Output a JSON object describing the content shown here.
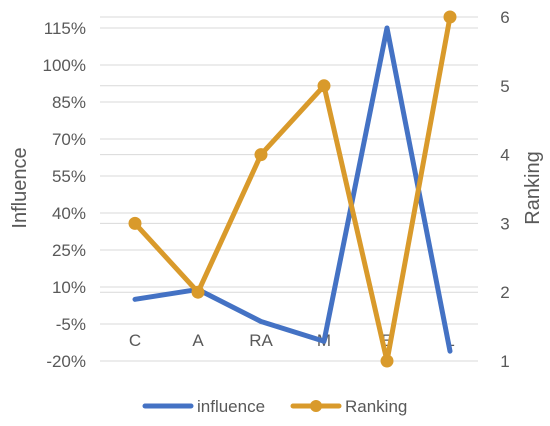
{
  "chart_data": {
    "type": "line",
    "categories": [
      "C",
      "A",
      "RA",
      "M",
      "E",
      "L"
    ],
    "series": [
      {
        "name": "influence",
        "axis": "left",
        "color": "#4472C4",
        "values": [
          0.05,
          0.09,
          -0.04,
          -0.12,
          1.15,
          -0.16
        ],
        "markers": false
      },
      {
        "name": "Ranking",
        "axis": "right",
        "color": "#D99A2B",
        "values": [
          3,
          2,
          4,
          5,
          1,
          6
        ],
        "markers": true
      }
    ],
    "y_left": {
      "label": "Influence",
      "min": -0.2,
      "max": 1.25,
      "ticks": [
        -0.2,
        -0.05,
        0.1,
        0.25,
        0.4,
        0.55,
        0.7,
        0.85,
        1.0,
        1.15
      ],
      "tick_labels": [
        "-20%",
        "-5%",
        "10%",
        "25%",
        "40%",
        "55%",
        "70%",
        "85%",
        "100%",
        "115%"
      ]
    },
    "y_right": {
      "label": "Ranking",
      "min": 1,
      "max": 6.2,
      "ticks": [
        1,
        2,
        3,
        4,
        5,
        6
      ],
      "tick_labels": [
        "1",
        "2",
        "3",
        "4",
        "5",
        "6"
      ]
    },
    "grid": true,
    "legend": "bottom",
    "gridline_color": "#D9D9D9"
  }
}
